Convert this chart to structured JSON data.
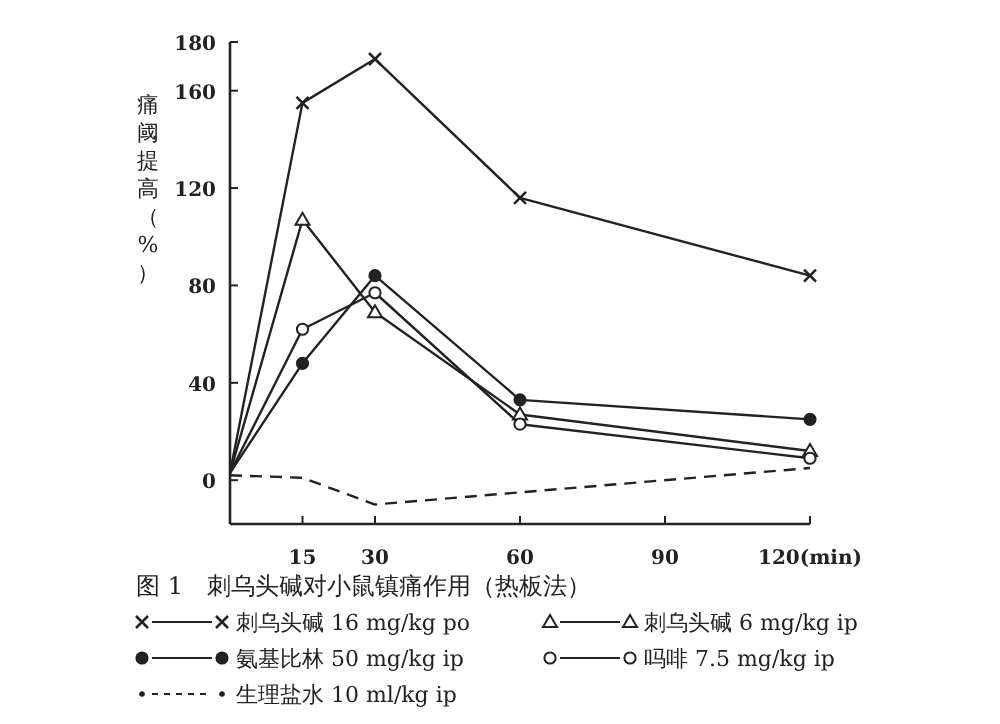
{
  "chart_data": {
    "type": "line",
    "title": "图 1　刺乌头碱对小鼠镇痛作用（热板法）",
    "ylabel": "痛阈提高（%）",
    "x": [
      0,
      15,
      30,
      60,
      120
    ],
    "series": [
      {
        "name": "刺乌头碱 16 mg/kg po",
        "color": "#222222",
        "marker": "cross",
        "line_style": "solid",
        "values": [
          3,
          155,
          173,
          116,
          84
        ]
      },
      {
        "name": "刺乌头碱 6 mg/kg ip",
        "color": "#222222",
        "marker": "triangle",
        "line_style": "solid",
        "values": [
          3,
          107,
          69,
          27,
          12
        ]
      },
      {
        "name": "氨基比林 50 mg/kg ip",
        "color": "#222222",
        "marker": "circle",
        "line_style": "solid",
        "values": [
          3,
          48,
          84,
          33,
          25
        ]
      },
      {
        "name": "吗啡 7.5 mg/kg ip",
        "color": "#222222",
        "marker": "circle",
        "line_style": "solid",
        "values": [
          3,
          62,
          77,
          23,
          9
        ]
      },
      {
        "name": "生理盐水 10 ml/kg ip",
        "color": "#222222",
        "marker": "none",
        "line_style": "dashed",
        "values": [
          2,
          1,
          -10,
          -5,
          5
        ]
      }
    ],
    "xlim": [
      0,
      120
    ],
    "ylim": [
      -18,
      180
    ],
    "xticks": [
      15,
      30,
      60,
      90,
      {
        "value": 120,
        "label": "120(min)"
      }
    ],
    "yticks": [
      0,
      40,
      80,
      120,
      160,
      180
    ],
    "grid": false,
    "legend": "bottom"
  }
}
